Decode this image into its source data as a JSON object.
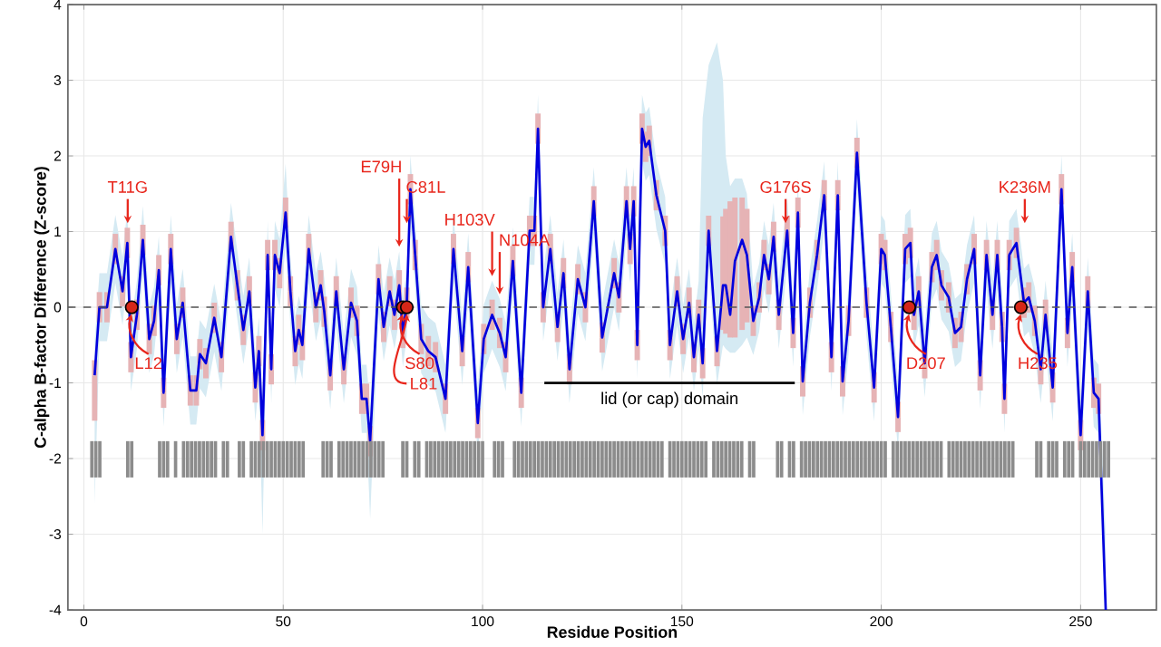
{
  "chart_data": {
    "type": "line",
    "xlabel": "Residue Position",
    "ylabel": "C-alpha B-factor Difference (Z-score)",
    "xlim": [
      -4,
      269
    ],
    "ylim": [
      -4,
      4
    ],
    "xticks": [
      0,
      50,
      100,
      150,
      200,
      250
    ],
    "yticks": [
      -4,
      -3,
      -2,
      -1,
      0,
      1,
      2,
      3,
      4
    ],
    "grid": true,
    "x": [
      2.7,
      3.9,
      5.8,
      7.9,
      9.7,
      10.9,
      11.8,
      13.3,
      14.8,
      16.4,
      17.6,
      18.8,
      20.0,
      21.8,
      23.3,
      24.8,
      26.7,
      28.2,
      29.1,
      30.6,
      32.7,
      34.5,
      36.9,
      38.5,
      40.0,
      41.5,
      43.0,
      43.9,
      44.8,
      46.1,
      47.0,
      47.9,
      49.1,
      50.6,
      51.8,
      53.0,
      53.9,
      54.8,
      56.4,
      58.2,
      59.4,
      60.3,
      61.8,
      63.3,
      65.2,
      67.0,
      68.5,
      69.7,
      70.9,
      71.8,
      73.9,
      75.2,
      76.7,
      77.9,
      79.1,
      80.0,
      81.0,
      81.9,
      83.1,
      84.6,
      86.4,
      88.2,
      90.7,
      92.7,
      94.9,
      96.4,
      98.8,
      100.3,
      102.4,
      104.3,
      105.8,
      107.6,
      109.7,
      111.8,
      113.0,
      113.9,
      115.2,
      117.0,
      118.8,
      120.3,
      121.8,
      123.9,
      125.8,
      127.9,
      130.0,
      133.0,
      134.2,
      136.1,
      137.0,
      137.9,
      138.8,
      140.0,
      140.9,
      141.8,
      143.6,
      145.8,
      147.0,
      148.8,
      150.3,
      151.8,
      153.0,
      154.2,
      155.2,
      156.7,
      158.8,
      160.3,
      161.0,
      162.1,
      163.3,
      165.1,
      166.3,
      167.9,
      169.4,
      170.6,
      171.8,
      173.0,
      174.3,
      176.4,
      177.9,
      179.1,
      180.3,
      182.1,
      183.9,
      185.7,
      187.5,
      189.1,
      190.3,
      191.8,
      193.9,
      196.3,
      198.2,
      200.0,
      200.9,
      202.4,
      204.2,
      206.0,
      207.3,
      208.2,
      209.4,
      210.9,
      212.7,
      213.9,
      215.1,
      216.9,
      218.5,
      220.0,
      221.5,
      223.3,
      224.8,
      226.4,
      227.9,
      229.1,
      230.3,
      230.9,
      232.1,
      233.9,
      235.8,
      237.0,
      238.5,
      240.0,
      241.2,
      243.0,
      245.2,
      246.7,
      247.9,
      250.0,
      251.8,
      253.3,
      254.5,
      256.3
    ],
    "series": [
      {
        "color": "#0000dd",
        "values": [
          -0.9,
          0,
          0,
          0.77,
          0.21,
          0.85,
          -0.66,
          -0.1,
          0.89,
          -0.42,
          -0.18,
          0.49,
          -1.13,
          0.77,
          -0.42,
          0.06,
          -1.1,
          -1.1,
          -0.62,
          -0.74,
          -0.14,
          -0.66,
          0.93,
          0.29,
          -0.3,
          0.21,
          -1.06,
          -0.58,
          -1.69,
          0.69,
          -0.82,
          0.69,
          0.45,
          1.25,
          0.21,
          -0.58,
          -0.3,
          -0.5,
          0.77,
          0,
          0.29,
          -0.06,
          -0.9,
          0.21,
          -0.82,
          0.06,
          -0.18,
          -1.21,
          -1.21,
          -1.77,
          0.37,
          -0.26,
          0.21,
          -0.1,
          0.29,
          -0.34,
          0.06,
          1.56,
          0.69,
          -0.42,
          -0.58,
          -0.66,
          -1.21,
          0.77,
          -0.58,
          0.53,
          -1.53,
          -0.42,
          -0.1,
          -0.34,
          -0.66,
          0.61,
          -1.13,
          1.01,
          1.01,
          2.36,
          0,
          0.77,
          -0.26,
          0.45,
          -0.82,
          0.37,
          0,
          1.4,
          -0.4,
          0.45,
          0.13,
          1.4,
          0.77,
          1.4,
          -0.5,
          2.36,
          2.12,
          2.2,
          1.48,
          1.01,
          -0.5,
          0.21,
          -0.42,
          0.06,
          -0.66,
          -0.1,
          -0.74,
          1.01,
          -0.58,
          0.29,
          0.29,
          -0.1,
          0.61,
          0.89,
          0.69,
          -0.18,
          0.13,
          0.69,
          0.37,
          0.93,
          -0.1,
          1.01,
          -0.34,
          1.25,
          -0.98,
          0.06,
          0.69,
          1.48,
          -0.66,
          1.48,
          -0.98,
          -0.18,
          2.04,
          0.06,
          -1.06,
          0.77,
          0.69,
          -0.26,
          -1.45,
          0.77,
          0.85,
          -0.1,
          0.21,
          -0.74,
          0.53,
          0.69,
          0.29,
          0.13,
          -0.34,
          -0.26,
          0.37,
          0.77,
          -0.9,
          0.69,
          -0.1,
          0.69,
          -0.26,
          -1.21,
          0.69,
          0.85,
          0.06,
          0.13,
          -0.18,
          -0.82,
          -0.1,
          -1.06,
          1.56,
          -0.34,
          0.53,
          -1.69,
          0.21,
          -1.13,
          -1.21,
          -4.0
        ],
        "upper": [
          -0.45,
          0.45,
          0.45,
          1.22,
          0.66,
          1.3,
          -0.21,
          0.35,
          1.34,
          0.03,
          0.27,
          0.94,
          -0.68,
          1.22,
          0.03,
          0.51,
          -0.65,
          -0.65,
          -0.17,
          -0.29,
          0.31,
          -0.21,
          1.38,
          0.74,
          0.15,
          0.66,
          -0.61,
          -0.13,
          -1.24,
          1.14,
          -0.37,
          1.14,
          0.9,
          1.9,
          0.66,
          -0.13,
          0.15,
          -0.05,
          1.22,
          0.45,
          0.74,
          0.39,
          -0.45,
          0.66,
          -0.37,
          0.51,
          0.27,
          -0.76,
          -0.76,
          -1.32,
          0.82,
          0.19,
          0.66,
          0.35,
          0.74,
          0.11,
          0.51,
          2.01,
          1.14,
          0.03,
          -0.13,
          -0.21,
          -0.76,
          1.22,
          -0.13,
          0.98,
          -1.08,
          0.03,
          0.35,
          0.11,
          -0.21,
          1.06,
          -0.68,
          1.46,
          1.46,
          2.81,
          0.45,
          1.22,
          0.19,
          0.9,
          -0.37,
          0.82,
          0.45,
          1.85,
          0.05,
          0.9,
          0.58,
          1.85,
          1.22,
          1.85,
          -0.05,
          2.81,
          2.57,
          2.65,
          1.93,
          1.46,
          -0.05,
          0.66,
          0.03,
          0.51,
          -0.21,
          0.35,
          2.5,
          3.2,
          3.5,
          3.0,
          2.0,
          1.6,
          1.7,
          1.7,
          1.5,
          0.27,
          0.58,
          1.14,
          0.82,
          1.38,
          0.35,
          1.46,
          0.11,
          1.7,
          -0.53,
          0.51,
          1.14,
          1.93,
          -0.21,
          1.93,
          -0.53,
          0.27,
          2.49,
          0.51,
          -0.61,
          1.22,
          1.14,
          0.19,
          -1.0,
          1.22,
          1.3,
          0.35,
          0.66,
          -0.29,
          0.98,
          1.14,
          0.74,
          0.58,
          0.11,
          0.19,
          0.82,
          1.22,
          -0.45,
          1.14,
          0.35,
          1.14,
          0.19,
          -0.76,
          1.14,
          1.3,
          0.51,
          0.58,
          0.27,
          -0.37,
          0.35,
          -0.61,
          2.01,
          0.11,
          0.98,
          -1.24,
          0.66,
          -0.68,
          -0.76,
          -3.0
        ],
        "lower": [
          -2.6,
          -0.45,
          -0.45,
          0.32,
          -0.24,
          0.4,
          -1.11,
          -0.55,
          0.44,
          -0.87,
          -0.63,
          0.04,
          -1.58,
          0.32,
          -0.87,
          -0.39,
          -1.55,
          -1.55,
          -1.07,
          -1.19,
          -0.59,
          -1.11,
          0.48,
          -0.16,
          -0.75,
          -0.24,
          -1.51,
          -1.03,
          -3.0,
          0.24,
          -1.27,
          0.24,
          0,
          0.8,
          -0.24,
          -1.03,
          -0.75,
          -0.95,
          0.32,
          -0.45,
          -0.16,
          -0.51,
          -1.35,
          -0.24,
          -1.27,
          -0.39,
          -0.63,
          -1.66,
          -1.66,
          -2.8,
          -0.08,
          -0.71,
          -0.24,
          -0.55,
          -0.16,
          -0.79,
          -0.39,
          1.11,
          0.24,
          -0.87,
          -1.03,
          -1.11,
          -1.66,
          0.32,
          -1.03,
          0.08,
          -1.98,
          -0.87,
          -0.55,
          -0.79,
          -1.11,
          0.16,
          -1.58,
          0.56,
          0.56,
          1.91,
          -0.45,
          0.32,
          -0.71,
          0,
          -1.27,
          -0.08,
          -0.45,
          0.95,
          -0.85,
          0,
          -0.32,
          0.95,
          0.32,
          0.95,
          -0.95,
          1.91,
          1.67,
          1.75,
          1.03,
          0.56,
          -0.95,
          -0.24,
          -0.87,
          -0.39,
          -1.11,
          -0.55,
          -1.19,
          0.56,
          -1.03,
          -0.5,
          -0.55,
          -0.6,
          -0.6,
          -0.5,
          -0.4,
          -0.63,
          -0.32,
          0.24,
          -0.08,
          0.48,
          -0.55,
          0.56,
          -0.79,
          0.8,
          -1.43,
          -0.39,
          0.24,
          1.03,
          -1.11,
          1.03,
          -1.43,
          -0.63,
          1.59,
          -0.39,
          -1.51,
          0.32,
          0.24,
          -0.71,
          -1.9,
          0.32,
          0.4,
          -0.55,
          -0.24,
          -1.19,
          0.08,
          0.24,
          -0.16,
          -0.32,
          -0.79,
          -0.71,
          -0.08,
          0.32,
          -1.35,
          0.24,
          -0.55,
          0.24,
          -0.71,
          -1.66,
          0.24,
          0.4,
          -0.39,
          -0.32,
          -0.63,
          -1.27,
          -0.55,
          -1.51,
          1.11,
          -0.79,
          0.08,
          -2.2,
          -0.24,
          -1.58,
          -1.66,
          -4.0
        ],
        "errors": [
          [
            -1.5,
            -0.7
          ],
          [
            -0.2,
            0.2
          ],
          [
            -0.2,
            0.2
          ],
          [
            0.57,
            0.97
          ],
          [
            0.01,
            0.41
          ],
          [
            0.65,
            1.05
          ],
          [
            -0.86,
            -0.46
          ],
          [
            -0.3,
            0.1
          ],
          [
            0.69,
            1.09
          ],
          [
            -0.62,
            -0.22
          ],
          [
            -0.38,
            0.02
          ],
          [
            0.29,
            0.69
          ],
          [
            -1.33,
            -0.93
          ],
          [
            0.57,
            0.97
          ],
          [
            -0.62,
            -0.22
          ],
          [
            -0.14,
            0.26
          ],
          [
            -1.3,
            -0.9
          ],
          [
            -1.3,
            -0.9
          ],
          [
            -0.82,
            -0.42
          ],
          [
            -0.94,
            -0.54
          ],
          [
            -0.34,
            0.06
          ],
          [
            -0.86,
            -0.46
          ],
          [
            0.73,
            1.13
          ],
          [
            0.09,
            0.49
          ],
          [
            -0.5,
            -0.1
          ],
          [
            0.01,
            0.41
          ],
          [
            -1.26,
            -0.86
          ],
          [
            -0.78,
            -0.38
          ],
          [
            -1.89,
            -1.49
          ],
          [
            0.49,
            0.89
          ],
          [
            -1.02,
            -0.62
          ],
          [
            0.49,
            0.89
          ],
          [
            0.25,
            0.65
          ],
          [
            1.05,
            1.45
          ],
          [
            0.01,
            0.41
          ],
          [
            -0.78,
            -0.38
          ],
          [
            -0.5,
            -0.1
          ],
          [
            -0.7,
            -0.3
          ],
          [
            0.57,
            0.97
          ],
          [
            -0.2,
            0.2
          ],
          [
            0.09,
            0.49
          ],
          [
            -0.26,
            0.14
          ],
          [
            -1.1,
            -0.7
          ],
          [
            0.01,
            0.41
          ],
          [
            -1.02,
            -0.62
          ],
          [
            -0.14,
            0.26
          ],
          [
            -0.38,
            0.02
          ],
          [
            -1.41,
            -1.01
          ],
          [
            -1.41,
            -1.01
          ],
          [
            -1.97,
            -1.57
          ],
          [
            0.17,
            0.57
          ],
          [
            -0.46,
            -0.06
          ],
          [
            0.01,
            0.41
          ],
          [
            -0.3,
            0.1
          ],
          [
            0.09,
            0.49
          ],
          [
            -0.54,
            -0.14
          ],
          [
            -0.14,
            0.26
          ],
          [
            1.36,
            1.76
          ],
          [
            0.49,
            0.89
          ],
          [
            -0.62,
            -0.22
          ],
          [
            -0.78,
            -0.38
          ],
          [
            -0.86,
            -0.46
          ],
          [
            -1.41,
            -1.01
          ],
          [
            0.57,
            0.97
          ],
          [
            -0.78,
            -0.38
          ],
          [
            0.33,
            0.73
          ],
          [
            -1.73,
            -1.33
          ],
          [
            -0.62,
            -0.22
          ],
          [
            -0.3,
            0.1
          ],
          [
            -0.54,
            -0.14
          ],
          [
            -0.86,
            -0.46
          ],
          [
            0.41,
            0.81
          ],
          [
            -1.33,
            -0.93
          ],
          [
            0.81,
            1.21
          ],
          [
            0.81,
            1.21
          ],
          [
            2.16,
            2.56
          ],
          [
            -0.2,
            0.2
          ],
          [
            0.57,
            0.97
          ],
          [
            -0.46,
            -0.06
          ],
          [
            0.25,
            0.65
          ],
          [
            -1.02,
            -0.62
          ],
          [
            0.17,
            0.57
          ],
          [
            -0.2,
            0.2
          ],
          [
            1.2,
            1.6
          ],
          [
            -0.6,
            -0.2
          ],
          [
            0.25,
            0.65
          ],
          [
            -0.07,
            0.33
          ],
          [
            1.2,
            1.6
          ],
          [
            0.57,
            0.97
          ],
          [
            1.2,
            1.6
          ],
          [
            -0.7,
            -0.3
          ],
          [
            2.16,
            2.56
          ],
          [
            1.92,
            2.32
          ],
          [
            2.0,
            2.4
          ],
          [
            1.28,
            1.68
          ],
          [
            0.81,
            1.21
          ],
          [
            -0.7,
            -0.3
          ],
          [
            0.01,
            0.41
          ],
          [
            -0.62,
            -0.22
          ],
          [
            -0.14,
            0.26
          ],
          [
            -0.86,
            -0.46
          ],
          [
            -0.3,
            0.1
          ],
          [
            -0.94,
            -0.54
          ],
          [
            0.81,
            1.21
          ],
          [
            -0.78,
            -0.38
          ],
          [
            -0.3,
            1.2
          ],
          [
            -0.35,
            1.3
          ],
          [
            -0.4,
            1.4
          ],
          [
            -0.4,
            1.45
          ],
          [
            -0.3,
            1.45
          ],
          [
            -0.2,
            1.3
          ],
          [
            -0.38,
            0.02
          ],
          [
            -0.07,
            0.33
          ],
          [
            0.49,
            0.89
          ],
          [
            0.17,
            0.57
          ],
          [
            0.73,
            1.13
          ],
          [
            -0.3,
            0.1
          ],
          [
            0.81,
            1.21
          ],
          [
            -0.54,
            -0.14
          ],
          [
            1.05,
            1.45
          ],
          [
            -1.18,
            -0.78
          ],
          [
            -0.14,
            0.26
          ],
          [
            0.49,
            0.89
          ],
          [
            1.28,
            1.68
          ],
          [
            -0.86,
            -0.46
          ],
          [
            1.28,
            1.68
          ],
          [
            -1.18,
            -0.78
          ],
          [
            -0.38,
            0.02
          ],
          [
            1.84,
            2.24
          ],
          [
            -0.14,
            0.26
          ],
          [
            -1.26,
            -0.86
          ],
          [
            0.57,
            0.97
          ],
          [
            0.49,
            0.89
          ],
          [
            -0.46,
            -0.06
          ],
          [
            -1.65,
            -1.25
          ],
          [
            0.57,
            0.97
          ],
          [
            0.65,
            1.05
          ],
          [
            -0.3,
            0.1
          ],
          [
            0.01,
            0.41
          ],
          [
            -0.94,
            -0.54
          ],
          [
            0.33,
            0.73
          ],
          [
            0.49,
            0.89
          ],
          [
            0.09,
            0.49
          ],
          [
            -0.07,
            0.33
          ],
          [
            -0.54,
            -0.14
          ],
          [
            -0.46,
            -0.06
          ],
          [
            0.17,
            0.57
          ],
          [
            0.57,
            0.97
          ],
          [
            -1.1,
            -0.7
          ],
          [
            0.49,
            0.89
          ],
          [
            -0.3,
            0.1
          ],
          [
            0.49,
            0.89
          ],
          [
            -0.46,
            -0.06
          ],
          [
            -1.41,
            -1.01
          ],
          [
            0.49,
            0.89
          ],
          [
            0.65,
            1.05
          ],
          [
            -0.14,
            0.26
          ],
          [
            -0.07,
            0.33
          ],
          [
            -0.38,
            0.02
          ],
          [
            -1.02,
            -0.62
          ],
          [
            -0.3,
            0.1
          ],
          [
            -1.26,
            -0.86
          ],
          [
            1.36,
            1.76
          ],
          [
            -0.54,
            -0.14
          ],
          [
            0.33,
            0.73
          ],
          [
            -1.89,
            -1.49
          ],
          [
            0.01,
            0.41
          ],
          [
            -1.33,
            -0.93
          ],
          [
            -1.41,
            -1.01
          ],
          null
        ]
      },
      {
        "type": "bar",
        "color": "#8c8c8c",
        "x": [
          2,
          3,
          4,
          11,
          12,
          19,
          20,
          21,
          23,
          25,
          26,
          27,
          28,
          29,
          30,
          31,
          32,
          33,
          35,
          36,
          39,
          40,
          42,
          43,
          44,
          45,
          46,
          47,
          48,
          49,
          50,
          51,
          52,
          53,
          54,
          55,
          60,
          61,
          62,
          64,
          65,
          66,
          67,
          68,
          69,
          70,
          71,
          72,
          73,
          74,
          75,
          80,
          81,
          83,
          84,
          86,
          87,
          88,
          89,
          90,
          91,
          92,
          93,
          94,
          95,
          96,
          97,
          98,
          99,
          100,
          103,
          104,
          105,
          108,
          109,
          110,
          111,
          112,
          113,
          114,
          115,
          116,
          117,
          118,
          119,
          120,
          121,
          122,
          123,
          124,
          125,
          126,
          127,
          128,
          129,
          130,
          131,
          132,
          133,
          134,
          135,
          136,
          137,
          138,
          139,
          140,
          141,
          142,
          143,
          144,
          145,
          147,
          148,
          149,
          150,
          151,
          152,
          153,
          154,
          155,
          156,
          158,
          159,
          160,
          161,
          162,
          163,
          164,
          165,
          167,
          168,
          174,
          175,
          177,
          178,
          180,
          181,
          182,
          183,
          184,
          185,
          186,
          187,
          188,
          189,
          190,
          191,
          192,
          193,
          194,
          195,
          196,
          197,
          198,
          199,
          200,
          201,
          203,
          204,
          205,
          206,
          207,
          208,
          209,
          210,
          211,
          212,
          213,
          214,
          215,
          217,
          218,
          219,
          220,
          221,
          222,
          223,
          224,
          225,
          226,
          227,
          228,
          229,
          230,
          231,
          232,
          233,
          239,
          240,
          242,
          243,
          244,
          246,
          247,
          248,
          250,
          251,
          252,
          253,
          254,
          255,
          256,
          257
        ],
        "values": [
          0.48,
          0.48,
          0.48,
          0.48,
          0.48,
          0.48,
          0.48,
          0.48,
          0.48,
          0.48,
          0.48,
          0.48,
          0.48,
          0.48,
          0.48,
          0.48,
          0.48,
          0.48,
          0.48,
          0.48,
          0.48,
          0.48,
          0.48,
          0.48,
          0.48,
          0.48,
          0.48,
          0.48,
          0.48,
          0.48,
          0.48,
          0.48,
          0.48,
          0.48,
          0.48,
          0.48,
          0.48,
          0.48,
          0.48,
          0.48,
          0.48,
          0.48,
          0.48,
          0.48,
          0.48,
          0.48,
          0.48,
          0.48,
          0.48,
          0.48,
          0.48,
          0.48,
          0.48,
          0.48,
          0.48,
          0.48,
          0.48,
          0.48,
          0.48,
          0.48,
          0.48,
          0.48,
          0.48,
          0.48,
          0.48,
          0.48,
          0.48,
          0.48,
          0.48,
          0.48,
          0.48,
          0.48,
          0.48,
          0.48,
          0.48,
          0.48,
          0.48,
          0.48,
          0.48,
          0.48,
          0.48,
          0.48,
          0.48,
          0.48,
          0.48,
          0.48,
          0.48,
          0.48,
          0.48,
          0.48,
          0.48,
          0.48,
          0.48,
          0.48,
          0.48,
          0.48,
          0.48,
          0.48,
          0.48,
          0.48,
          0.48,
          0.48,
          0.48,
          0.48,
          0.48,
          0.48,
          0.48,
          0.48,
          0.48,
          0.48,
          0.48,
          0.48,
          0.48,
          0.48,
          0.48,
          0.48,
          0.48,
          0.48,
          0.48,
          0.48,
          0.48,
          0.48,
          0.48,
          0.48,
          0.48,
          0.48,
          0.48,
          0.48,
          0.48,
          0.48,
          0.48,
          0.48,
          0.48,
          0.48,
          0.48,
          0.48,
          0.48,
          0.48,
          0.48,
          0.48,
          0.48,
          0.48,
          0.48,
          0.48,
          0.48,
          0.48,
          0.48,
          0.48,
          0.48,
          0.48,
          0.48,
          0.48,
          0.48,
          0.48,
          0.48,
          0.48,
          0.48,
          0.48,
          0.48,
          0.48,
          0.48,
          0.48,
          0.48,
          0.48,
          0.48,
          0.48,
          0.48,
          0.48,
          0.48,
          0.48,
          0.48,
          0.48,
          0.48,
          0.48,
          0.48,
          0.48,
          0.48,
          0.48,
          0.48,
          0.48,
          0.48,
          0.48,
          0.48,
          0.48,
          0.48,
          0.48,
          0.48,
          0.48,
          0.48,
          0.48,
          0.48,
          0.48,
          0.48,
          0.48,
          0.48,
          0.48,
          0.48,
          0.48,
          0.48,
          0.48,
          0.48,
          0.48,
          0.48
        ],
        "base": [
          -2.25,
          -2.25,
          -2.25,
          -2.25,
          -2.25,
          -2.25,
          -2.25,
          -2.25,
          -2.25,
          -2.25,
          -2.25,
          -2.25,
          -2.25,
          -2.25,
          -2.25,
          -2.25,
          -2.25,
          -2.25,
          -2.25,
          -2.25,
          -2.25,
          -2.25,
          -2.25,
          -2.25,
          -2.25,
          -2.25,
          -2.25,
          -2.25,
          -2.25,
          -2.25,
          -2.25,
          -2.25,
          -2.25,
          -2.25,
          -2.25,
          -2.25,
          -2.25,
          -2.25,
          -2.25,
          -2.25,
          -2.25,
          -2.25,
          -2.25,
          -2.25,
          -2.25,
          -2.25,
          -2.25,
          -2.25,
          -2.25,
          -2.25,
          -2.25,
          -2.25,
          -2.25,
          -2.25,
          -2.25,
          -2.25,
          -2.25,
          -2.25,
          -2.25,
          -2.25,
          -2.25,
          -2.25,
          -2.25,
          -2.25,
          -2.25,
          -2.25,
          -2.25,
          -2.25,
          -2.25,
          -2.25,
          -2.25,
          -2.25,
          -2.25,
          -2.25,
          -2.25,
          -2.25,
          -2.25,
          -2.25,
          -2.25,
          -2.25,
          -2.25,
          -2.25,
          -2.25,
          -2.25,
          -2.25,
          -2.25,
          -2.25,
          -2.25,
          -2.25,
          -2.25,
          -2.25,
          -2.25,
          -2.25,
          -2.25,
          -2.25,
          -2.25,
          -2.25,
          -2.25,
          -2.25,
          -2.25,
          -2.25,
          -2.25,
          -2.25,
          -2.25,
          -2.25,
          -2.25,
          -2.25,
          -2.25,
          -2.25,
          -2.25,
          -2.25,
          -2.25,
          -2.25,
          -2.25,
          -2.25,
          -2.25,
          -2.25,
          -2.25,
          -2.25,
          -2.25,
          -2.25,
          -2.25,
          -2.25,
          -2.25,
          -2.25,
          -2.25,
          -2.25,
          -2.25,
          -2.25,
          -2.25,
          -2.25,
          -2.25,
          -2.25,
          -2.25,
          -2.25,
          -2.25,
          -2.25,
          -2.25,
          -2.25,
          -2.25,
          -2.25,
          -2.25,
          -2.25,
          -2.25,
          -2.25,
          -2.25,
          -2.25,
          -2.25,
          -2.25,
          -2.25,
          -2.25,
          -2.25,
          -2.25,
          -2.25,
          -2.25,
          -2.25,
          -2.25,
          -2.25,
          -2.25,
          -2.25,
          -2.25,
          -2.25,
          -2.25,
          -2.25,
          -2.25,
          -2.25,
          -2.25,
          -2.25,
          -2.25,
          -2.25,
          -2.25,
          -2.25,
          -2.25,
          -2.25,
          -2.25,
          -2.25,
          -2.25,
          -2.25,
          -2.25,
          -2.25,
          -2.25,
          -2.25,
          -2.25,
          -2.25,
          -2.25,
          -2.25,
          -2.25,
          -2.25,
          -2.25,
          -2.25,
          -2.25,
          -2.25,
          -2.25,
          -2.25,
          -2.25,
          -2.25,
          -2.25,
          -2.25,
          -2.25,
          -2.25,
          -2.25,
          -2.25,
          -2.25
        ]
      },
      {
        "type": "scatter",
        "marker": "circle",
        "color": "#d62718",
        "x": [
          12,
          80,
          81,
          207,
          235
        ],
        "values": [
          0,
          0,
          0,
          0,
          0
        ]
      },
      {
        "color": "#000000",
        "x": [
          115.5,
          178.3
        ],
        "values": [
          -1,
          -1
        ]
      }
    ],
    "ref_lines": [
      {
        "axis": "y",
        "value": 0,
        "color": "#555555",
        "line_style": "dashed"
      }
    ],
    "annotations": [
      {
        "text": "T11G",
        "x": 11,
        "y": 1.05
      },
      {
        "text": "E79H",
        "x": 79.1,
        "y": 0.74
      },
      {
        "text": "C81L",
        "x": 81,
        "y": 1.05
      },
      {
        "text": "H103V",
        "x": 102.4,
        "y": 0.35
      },
      {
        "text": "N104A",
        "x": 104.3,
        "y": 0.11
      },
      {
        "text": "G176S",
        "x": 176,
        "y": 1.05
      },
      {
        "text": "K236M",
        "x": 236,
        "y": 1.05
      },
      {
        "text": "L12",
        "x": 12,
        "y": 0
      },
      {
        "text": "S80",
        "x": 80,
        "y": 0
      },
      {
        "text": "L81",
        "x": 81,
        "y": 0
      },
      {
        "text": "D207",
        "x": 207,
        "y": 0
      },
      {
        "text": "H235",
        "x": 235,
        "y": 0
      },
      {
        "text": "lid (or cap) domain",
        "x": 146.9,
        "y": -1
      }
    ]
  }
}
